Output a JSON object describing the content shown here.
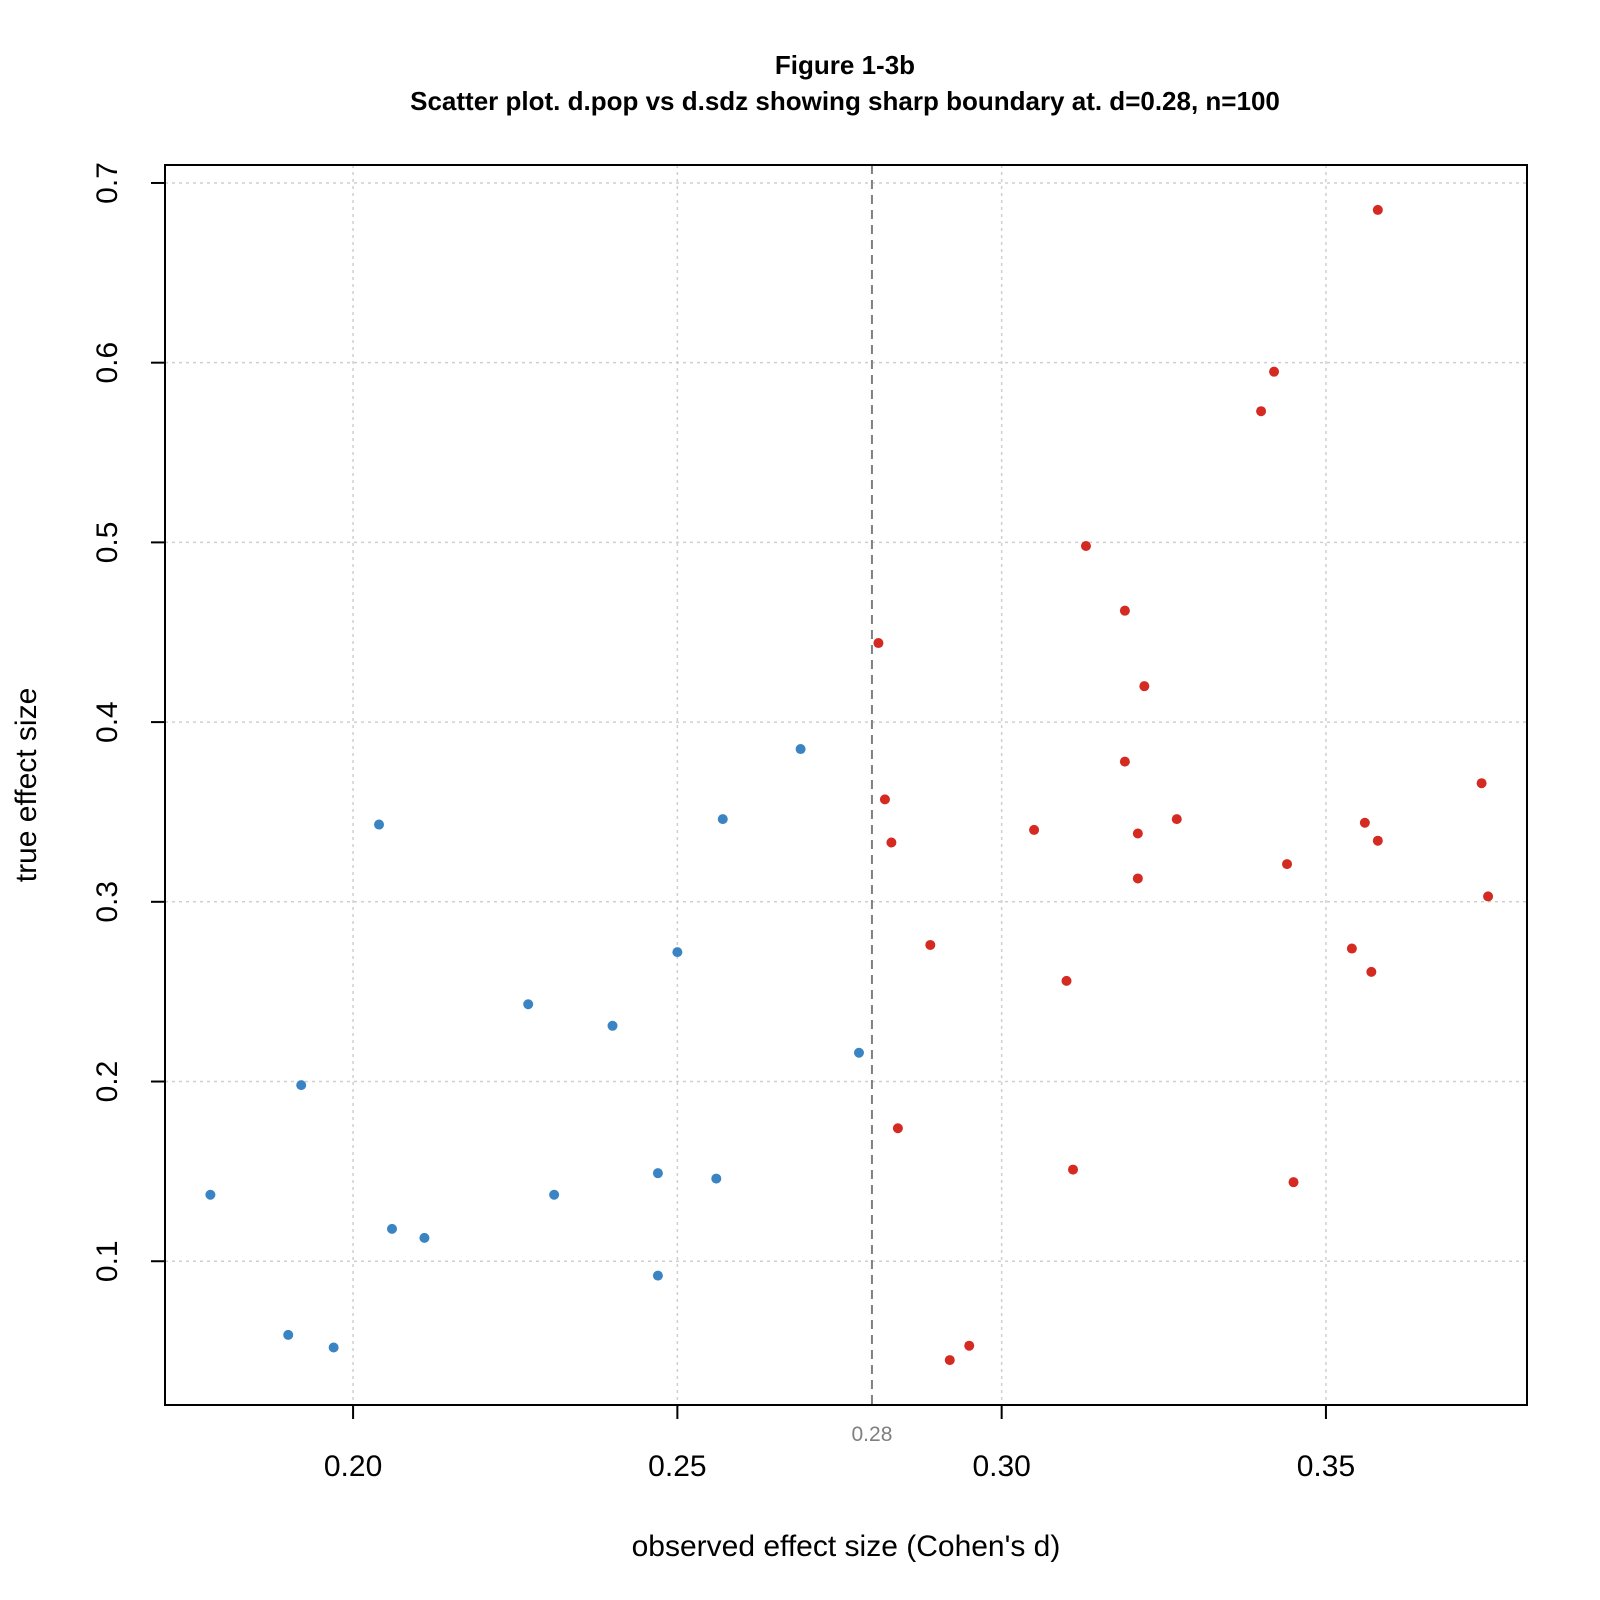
{
  "chart_data": {
    "type": "scatter",
    "title": "Figure 1-3b",
    "subtitle": "Scatter plot. d.pop vs d.sdz showing sharp boundary at. d=0.28, n=100",
    "xlabel": "observed effect size (Cohen's d)",
    "ylabel": "true effect size",
    "xlim": [
      0.171,
      0.381
    ],
    "ylim": [
      0.02,
      0.71
    ],
    "x_ticks": [
      0.2,
      0.25,
      0.3,
      0.35
    ],
    "x_tick_labels": [
      "0.20",
      "0.25",
      "0.30",
      "0.35"
    ],
    "y_ticks": [
      0.1,
      0.2,
      0.3,
      0.4,
      0.5,
      0.6,
      0.7
    ],
    "y_tick_labels": [
      "0.1",
      "0.2",
      "0.3",
      "0.4",
      "0.5",
      "0.6",
      "0.7"
    ],
    "grid": true,
    "reference_line": {
      "x": 0.28,
      "label": "0.28",
      "style": "dashed",
      "color": "#808080"
    },
    "colors": {
      "below_threshold": "#3a84c4",
      "above_threshold": "#d42a22"
    },
    "series": [
      {
        "color": "#3a84c4",
        "points": [
          {
            "x": 0.178,
            "y": 0.137
          },
          {
            "x": 0.19,
            "y": 0.059
          },
          {
            "x": 0.192,
            "y": 0.198
          },
          {
            "x": 0.197,
            "y": 0.052
          },
          {
            "x": 0.204,
            "y": 0.343
          },
          {
            "x": 0.206,
            "y": 0.118
          },
          {
            "x": 0.211,
            "y": 0.113
          },
          {
            "x": 0.227,
            "y": 0.243
          },
          {
            "x": 0.231,
            "y": 0.137
          },
          {
            "x": 0.24,
            "y": 0.231
          },
          {
            "x": 0.247,
            "y": 0.092
          },
          {
            "x": 0.247,
            "y": 0.149
          },
          {
            "x": 0.25,
            "y": 0.272
          },
          {
            "x": 0.256,
            "y": 0.146
          },
          {
            "x": 0.257,
            "y": 0.346
          },
          {
            "x": 0.269,
            "y": 0.385
          },
          {
            "x": 0.278,
            "y": 0.216
          }
        ]
      },
      {
        "color": "#d42a22",
        "points": [
          {
            "x": 0.281,
            "y": 0.444
          },
          {
            "x": 0.282,
            "y": 0.357
          },
          {
            "x": 0.283,
            "y": 0.333
          },
          {
            "x": 0.284,
            "y": 0.174
          },
          {
            "x": 0.289,
            "y": 0.276
          },
          {
            "x": 0.292,
            "y": 0.045
          },
          {
            "x": 0.295,
            "y": 0.053
          },
          {
            "x": 0.305,
            "y": 0.34
          },
          {
            "x": 0.31,
            "y": 0.256
          },
          {
            "x": 0.311,
            "y": 0.151
          },
          {
            "x": 0.313,
            "y": 0.498
          },
          {
            "x": 0.319,
            "y": 0.378
          },
          {
            "x": 0.319,
            "y": 0.462
          },
          {
            "x": 0.321,
            "y": 0.338
          },
          {
            "x": 0.321,
            "y": 0.313
          },
          {
            "x": 0.322,
            "y": 0.42
          },
          {
            "x": 0.327,
            "y": 0.346
          },
          {
            "x": 0.34,
            "y": 0.573
          },
          {
            "x": 0.342,
            "y": 0.595
          },
          {
            "x": 0.344,
            "y": 0.321
          },
          {
            "x": 0.345,
            "y": 0.144
          },
          {
            "x": 0.354,
            "y": 0.274
          },
          {
            "x": 0.356,
            "y": 0.344
          },
          {
            "x": 0.357,
            "y": 0.261
          },
          {
            "x": 0.358,
            "y": 0.334
          },
          {
            "x": 0.358,
            "y": 0.685
          },
          {
            "x": 0.374,
            "y": 0.366
          },
          {
            "x": 0.375,
            "y": 0.303
          }
        ]
      }
    ]
  }
}
